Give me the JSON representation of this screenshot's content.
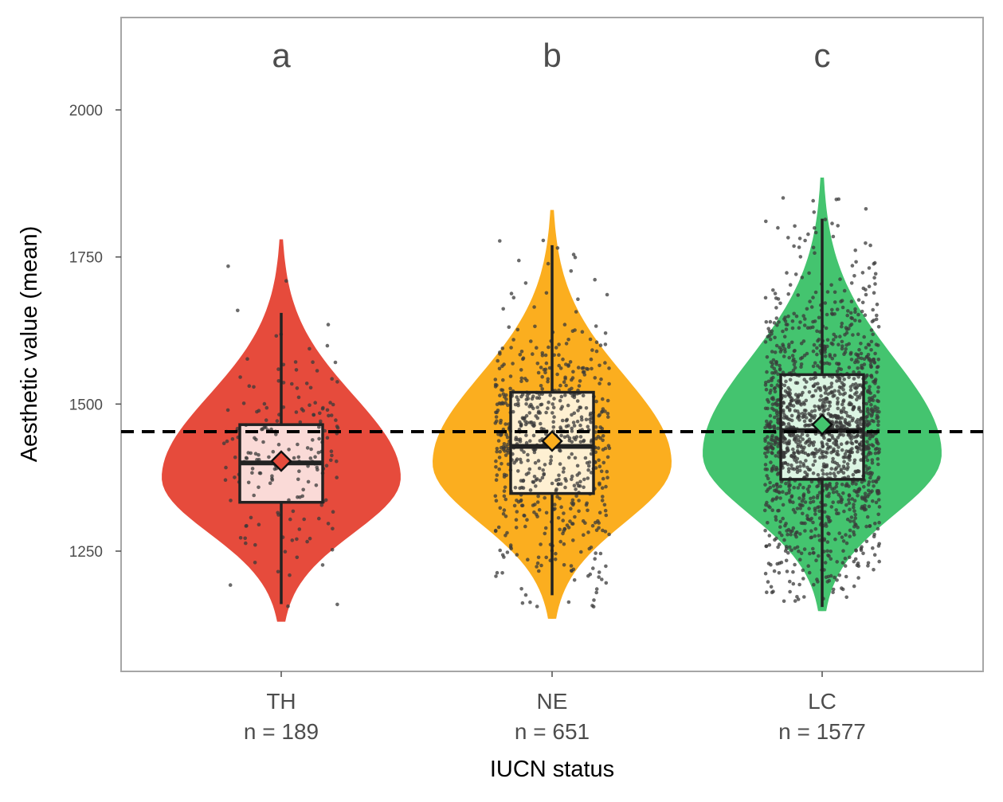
{
  "chart_data": {
    "type": "violin",
    "xlabel": "IUCN status",
    "ylabel": "Aesthetic value (mean)",
    "ylim": [
      1050,
      2150
    ],
    "yticks": [
      1250,
      1500,
      1750,
      2000
    ],
    "reference_line": {
      "value": 1453,
      "style": "dashed",
      "color": "#000000"
    },
    "grid": false,
    "groups": [
      {
        "category": "TH",
        "n_label": "n = 189",
        "n": 189,
        "letter": "a",
        "fill": "#e64b3c",
        "box_fill": "#fadad7",
        "min": 1160,
        "q1": 1333,
        "median": 1400,
        "q3": 1465,
        "max": 1655,
        "mean": 1403,
        "violin_range": [
          1130,
          1780
        ],
        "violin_mode": 1375
      },
      {
        "category": "NE",
        "n_label": "n = 651",
        "n": 651,
        "letter": "b",
        "fill": "#fbae1f",
        "box_fill": "#fef0d2",
        "min": 1175,
        "q1": 1348,
        "median": 1428,
        "q3": 1520,
        "max": 1770,
        "mean": 1437,
        "violin_range": [
          1135,
          1830
        ],
        "violin_mode": 1400
      },
      {
        "category": "LC",
        "n_label": "n = 1577",
        "n": 1577,
        "letter": "c",
        "fill": "#44c46f",
        "box_fill": "#dcf5e3",
        "min": 1155,
        "q1": 1372,
        "median": 1455,
        "q3": 1550,
        "max": 1815,
        "mean": 1465,
        "violin_range": [
          1148,
          1885
        ],
        "violin_mode": 1415
      }
    ]
  }
}
